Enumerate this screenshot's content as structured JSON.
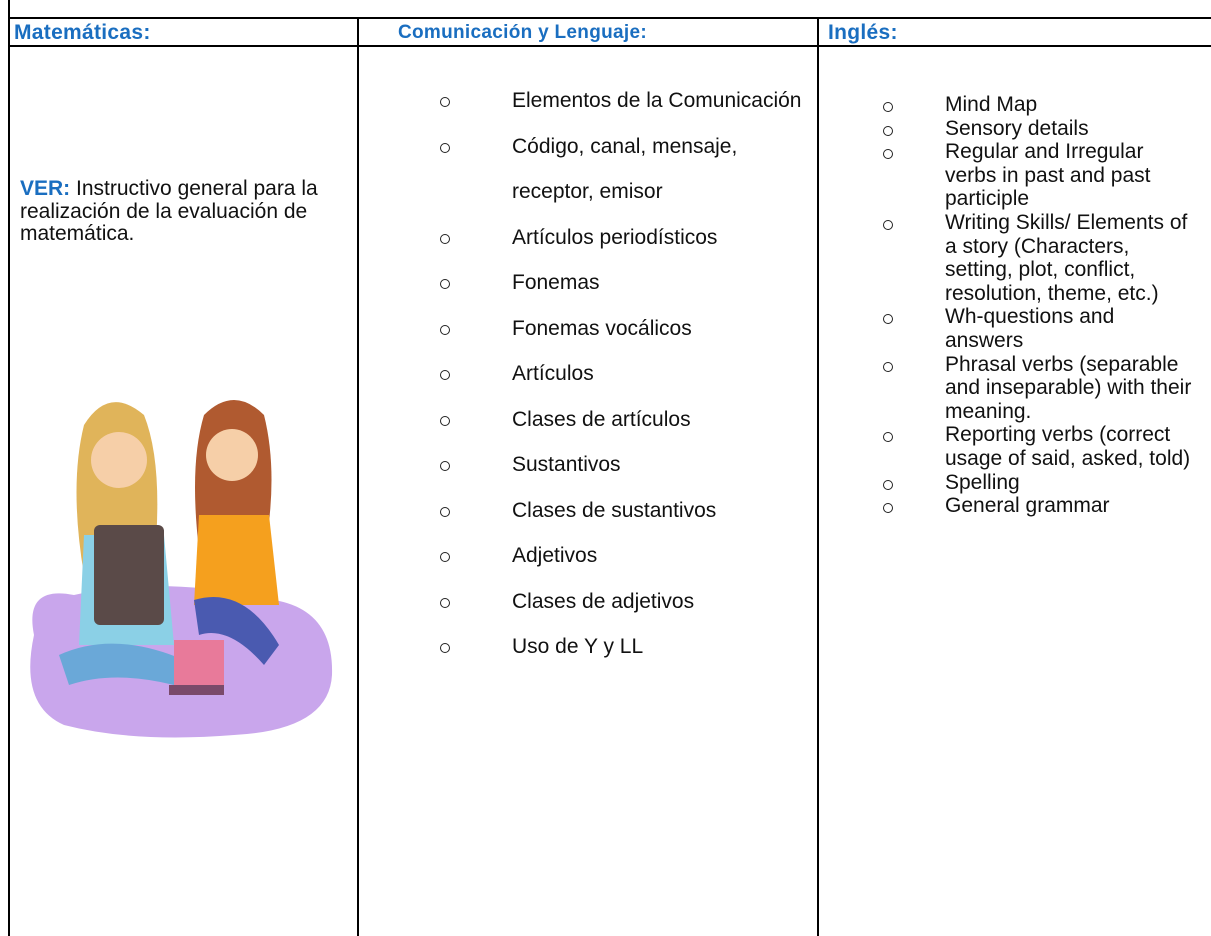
{
  "header": {
    "columns": [
      "Matemáticas:",
      "Comunicación y Lenguaje:",
      "Inglés:"
    ]
  },
  "matematicas": {
    "label": "VER:",
    "text": "Instructivo general para la realización de la evaluación de matemática."
  },
  "comunicacion": {
    "items": [
      "Elementos de la Comunicación",
      "Código, canal, mensaje, receptor, emisor",
      "Artículos periodísticos",
      "Fonemas",
      "Fonemas vocálicos",
      "Artículos",
      "Clases de artículos",
      "Sustantivos",
      "Clases de sustantivos",
      "Adjetivos",
      "Clases de adjetivos",
      "Uso de Y y LL"
    ]
  },
  "ingles": {
    "items": [
      "Mind Map",
      "Sensory details",
      "Regular and Irregular verbs in past and past participle",
      "Writing Skills/ Elements of a story (Characters, setting, plot, conflict, resolution, theme, etc.)",
      "Wh-questions and answers",
      "Phrasal verbs (separable and inseparable) with their meaning.",
      "Reporting verbs (correct usage of said, asked, told)",
      "Spelling",
      "General grammar"
    ]
  }
}
